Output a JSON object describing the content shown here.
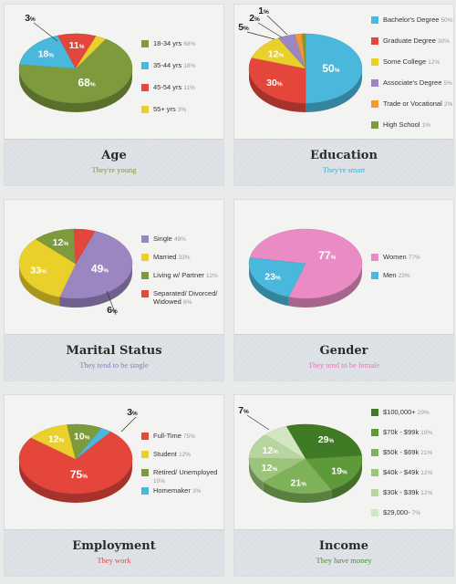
{
  "chart_data": [
    {
      "type": "pie",
      "title": "Age",
      "subtitle": "They're young",
      "subtitle_color": "#7a9a3a",
      "slices": [
        {
          "label": "18-34 yrs",
          "value": 68,
          "display": "68%",
          "color": "#7d9a3c"
        },
        {
          "label": "35-44 yrs",
          "value": 18,
          "display": "18%",
          "color": "#4ab8dc"
        },
        {
          "label": "45-54 yrs",
          "value": 11,
          "display": "11%",
          "color": "#e5463c"
        },
        {
          "label": "55+ yrs",
          "value": 3,
          "display": "3%",
          "color": "#e9d02a"
        }
      ]
    },
    {
      "type": "pie",
      "title": "Education",
      "subtitle": "They're smart",
      "subtitle_color": "#3aaed6",
      "slices": [
        {
          "label": "Bachelor's Degree",
          "value": 50,
          "display": "50%",
          "color": "#4ab8dc"
        },
        {
          "label": "Graduate Degree",
          "value": 30,
          "display": "30%",
          "color": "#e5463c"
        },
        {
          "label": "Some College",
          "value": 12,
          "display": "12%",
          "color": "#e9d02a"
        },
        {
          "label": "Associate's Degree",
          "value": 5,
          "display": "5%",
          "color": "#9b86c2"
        },
        {
          "label": "Trade or Vocational",
          "value": 2,
          "display": "2%",
          "color": "#ef9a30"
        },
        {
          "label": "High School",
          "value": 1,
          "display": "1%",
          "color": "#7d9a3c"
        }
      ]
    },
    {
      "type": "pie",
      "title": "Marital Status",
      "subtitle": "They tend to be single",
      "subtitle_color": "#8f7cbf",
      "slices": [
        {
          "label": "Single",
          "value": 49,
          "display": "49%",
          "color": "#9b86c2"
        },
        {
          "label": "Married",
          "value": 33,
          "display": "33%",
          "color": "#e9d02a"
        },
        {
          "label": "Living w/ Partner",
          "value": 12,
          "display": "12%",
          "color": "#7d9a3c"
        },
        {
          "label": "Separated/ Divorced/ Widowed",
          "value": 6,
          "display": "6%",
          "color": "#e5463c"
        }
      ]
    },
    {
      "type": "pie",
      "title": "Gender",
      "subtitle": "They tend to be female",
      "subtitle_color": "#e07bb6",
      "slices": [
        {
          "label": "Women",
          "value": 77,
          "display": "77%",
          "color": "#ea8cc3"
        },
        {
          "label": "Men",
          "value": 23,
          "display": "23%",
          "color": "#4ab8dc"
        }
      ]
    },
    {
      "type": "pie",
      "title": "Employment",
      "subtitle": "They work",
      "subtitle_color": "#e5463c",
      "slices": [
        {
          "label": "Full-Time",
          "value": 75,
          "display": "75%",
          "color": "#e5463c"
        },
        {
          "label": "Student",
          "value": 12,
          "display": "12%",
          "color": "#e9d02a"
        },
        {
          "label": "Retired/ Unemployed",
          "value": 10,
          "display": "10%",
          "color": "#7d9a3c"
        },
        {
          "label": "Homemaker",
          "value": 3,
          "display": "3%",
          "color": "#4ab8dc"
        }
      ]
    },
    {
      "type": "pie",
      "title": "Income",
      "subtitle": "They have money",
      "subtitle_color": "#4e8a2e",
      "slices": [
        {
          "label": "$100,000+",
          "value": 29,
          "display": "29%",
          "color": "#3f7a25"
        },
        {
          "label": "$70k - $99k",
          "value": 19,
          "display": "19%",
          "color": "#5e9a3a"
        },
        {
          "label": "$50k - $69k",
          "value": 21,
          "display": "21%",
          "color": "#7fb05a"
        },
        {
          "label": "$40k - $49k",
          "value": 12,
          "display": "12%",
          "color": "#9cc47c"
        },
        {
          "label": "$30k - $39k",
          "value": 12,
          "display": "12%",
          "color": "#b7d59e"
        },
        {
          "label": "$29,000-",
          "value": 7,
          "display": "7%",
          "color": "#d2e6c2"
        }
      ]
    }
  ]
}
